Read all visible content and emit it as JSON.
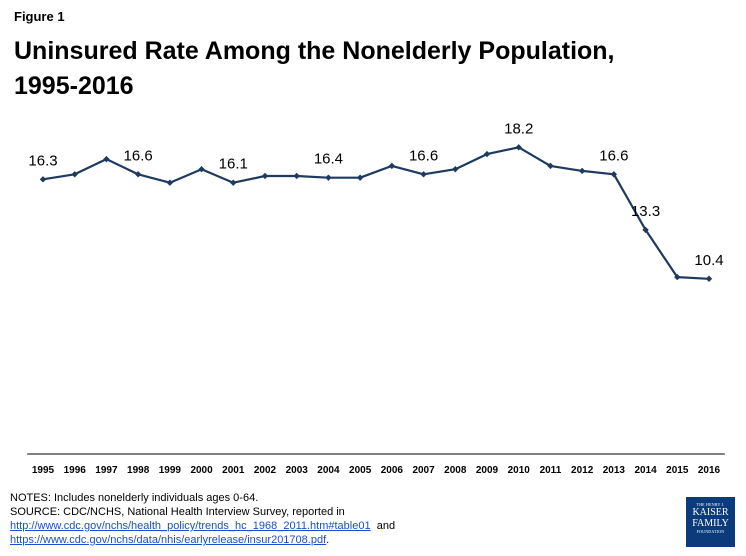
{
  "figure_label": "Figure 1",
  "title_line1": "Uninsured Rate Among the Nonelderly Population,",
  "title_line2": "1995-2016",
  "chart_data": {
    "type": "line",
    "title": "Uninsured Rate Among the Nonelderly Population, 1995-2016",
    "x": [
      "1995",
      "1996",
      "1997",
      "1998",
      "1999",
      "2000",
      "2001",
      "2002",
      "2003",
      "2004",
      "2005",
      "2006",
      "2007",
      "2008",
      "2009",
      "2010",
      "2011",
      "2012",
      "2013",
      "2014",
      "2015",
      "2016"
    ],
    "series": [
      {
        "values": [
          16.3,
          16.6,
          17.5,
          16.6,
          16.1,
          16.9,
          16.1,
          16.5,
          16.5,
          16.4,
          16.4,
          17.1,
          16.6,
          16.9,
          17.8,
          18.2,
          17.1,
          16.8,
          16.6,
          13.3,
          10.5,
          10.4
        ]
      }
    ],
    "data_labels": [
      {
        "index": 0,
        "text": "16.3"
      },
      {
        "index": 3,
        "text": "16.6"
      },
      {
        "index": 6,
        "text": "16.1"
      },
      {
        "index": 9,
        "text": "16.4"
      },
      {
        "index": 12,
        "text": "16.6"
      },
      {
        "index": 15,
        "text": "18.2"
      },
      {
        "index": 18,
        "text": "16.6"
      },
      {
        "index": 19,
        "text": "13.3"
      },
      {
        "index": 21,
        "text": "10.4"
      }
    ],
    "ylim": [
      0,
      20
    ],
    "grid": false,
    "line_color": "#1f3a5f"
  },
  "notes": {
    "line1": "NOTES: Includes nonelderly individuals ages 0-64.",
    "line2": "SOURCE: CDC/NCHS, National Health Interview Survey, reported in",
    "link1": "http://www.cdc.gov/nchs/health_policy/trends_hc_1968_2011.htm#table01",
    "and_text": "and",
    "link2": "https://www.cdc.gov/nchs/data/nhis/earlyrelease/insur201708.pdf",
    "period": "."
  },
  "logo": {
    "line1": "THE HENRY J.",
    "line2": "KAISER",
    "line3": "FAMILY",
    "line4": "FOUNDATION"
  }
}
